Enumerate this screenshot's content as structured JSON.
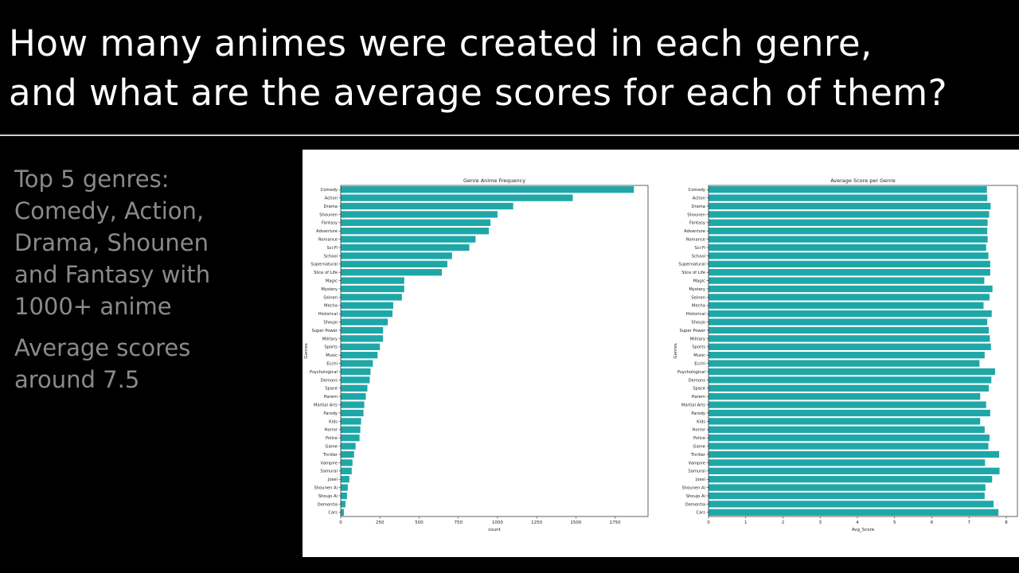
{
  "slide": {
    "title_line1": "How many animes were created in each genre,",
    "title_line2": "and what are the average scores for each of them?",
    "bullet1": "Top 5 genres:\nComedy, Action,\nDrama, Shounen\nand Fantasy with\n1000+ anime",
    "bullet2": "Average scores\naround 7.5"
  },
  "colors": {
    "bar": "#1fa7a8",
    "background": "#000000",
    "panel": "#ffffff",
    "muted_text": "#8a8a8a"
  },
  "chart_data": [
    {
      "type": "bar",
      "orientation": "horizontal",
      "title": "Genre Anime Frequency",
      "xlabel": "count",
      "ylabel": "Genres",
      "xlim": [
        0,
        1960
      ],
      "xticks": [
        0,
        250,
        500,
        750,
        1000,
        1250,
        1500,
        1750
      ],
      "categories": [
        "Comedy",
        "Action",
        "Drama",
        "Shounen",
        "Fantasy",
        "Adventure",
        "Romance",
        "Sci-Fi",
        "School",
        "Supernatural",
        "Slice of Life",
        "Magic",
        "Mystery",
        "Seinen",
        "Mecha",
        "Historical",
        "Shoujo",
        "Super Power",
        "Military",
        "Sports",
        "Music",
        "Ecchi",
        "Psychological",
        "Demons",
        "Space",
        "Harem",
        "Martial Arts",
        "Parody",
        "Kids",
        "Horror",
        "Police",
        "Game",
        "Thriller",
        "Vampire",
        "Samurai",
        "Josei",
        "Shounen Ai",
        "Shoujo Ai",
        "Dementia",
        "Cars"
      ],
      "values": [
        1870,
        1480,
        1100,
        1000,
        955,
        945,
        860,
        820,
        710,
        680,
        645,
        405,
        405,
        390,
        335,
        330,
        300,
        270,
        270,
        250,
        235,
        205,
        190,
        185,
        170,
        160,
        150,
        145,
        130,
        125,
        120,
        95,
        85,
        75,
        70,
        55,
        45,
        40,
        30,
        20
      ]
    },
    {
      "type": "bar",
      "orientation": "horizontal",
      "title": "Average Score per Genre",
      "xlabel": "Avg_Score",
      "ylabel": "Genres",
      "xlim": [
        0,
        8.3
      ],
      "xticks": [
        0,
        1,
        2,
        3,
        4,
        5,
        6,
        7,
        8
      ],
      "categories": [
        "Comedy",
        "Action",
        "Drama",
        "Shounen",
        "Fantasy",
        "Adventure",
        "Romance",
        "Sci-Fi",
        "School",
        "Supernatural",
        "Slice of Life",
        "Magic",
        "Mystery",
        "Seinen",
        "Mecha",
        "Historical",
        "Shoujo",
        "Super Power",
        "Military",
        "Sports",
        "Music",
        "Ecchi",
        "Psychological",
        "Demons",
        "Space",
        "Harem",
        "Martial Arts",
        "Parody",
        "Kids",
        "Horror",
        "Police",
        "Game",
        "Thriller",
        "Vampire",
        "Samurai",
        "Josei",
        "Shounen Ai",
        "Shoujo Ai",
        "Dementia",
        "Cars"
      ],
      "values": [
        7.48,
        7.49,
        7.58,
        7.54,
        7.5,
        7.49,
        7.5,
        7.46,
        7.52,
        7.57,
        7.57,
        7.41,
        7.63,
        7.55,
        7.39,
        7.61,
        7.49,
        7.53,
        7.56,
        7.59,
        7.42,
        7.28,
        7.7,
        7.6,
        7.53,
        7.3,
        7.46,
        7.57,
        7.3,
        7.42,
        7.55,
        7.52,
        7.81,
        7.43,
        7.82,
        7.62,
        7.44,
        7.42,
        7.66,
        7.79
      ]
    }
  ]
}
